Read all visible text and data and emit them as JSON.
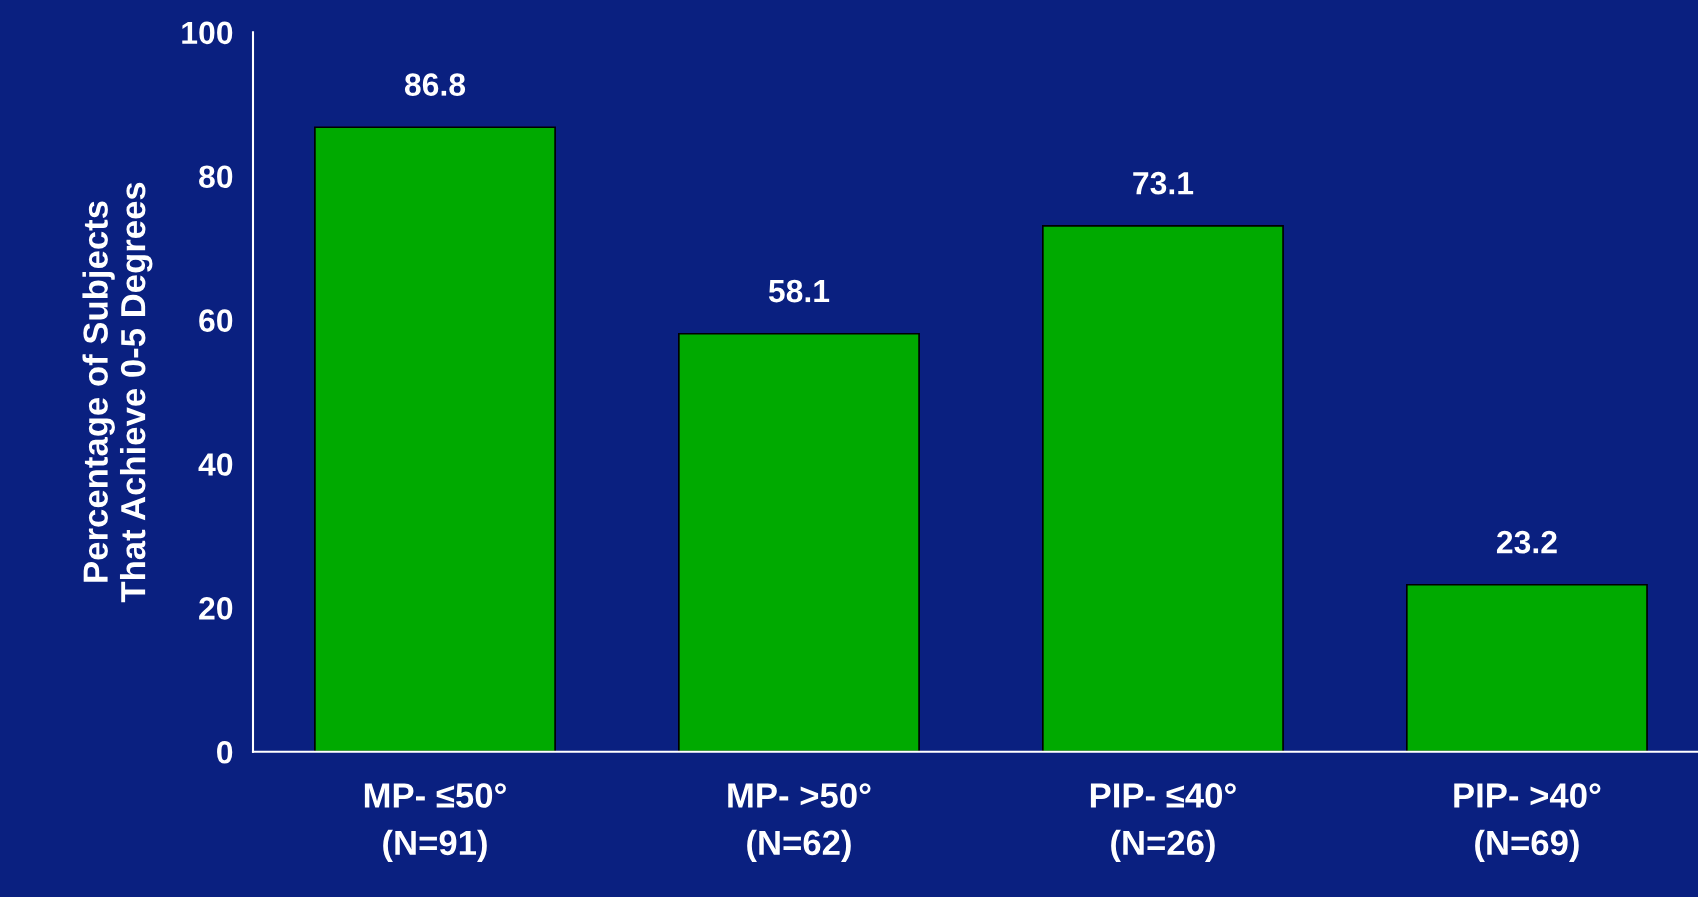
{
  "chart_data": {
    "type": "bar",
    "ylabel": "Percentage of Subjects\nThat Achieve 0-5 Degrees",
    "categories": [
      "MP- ≤50°\n(N=91)",
      "MP- >50°\n(N=62)",
      "PIP- ≤40°\n(N=26)",
      "PIP- >40°\n(N=69)"
    ],
    "values": [
      86.8,
      58.1,
      73.1,
      23.2
    ],
    "color": "#00aa00",
    "ylim": [
      0,
      100
    ],
    "yticks": [
      0,
      20,
      40,
      60,
      80,
      100
    ],
    "grid": false,
    "data_labels": true
  }
}
